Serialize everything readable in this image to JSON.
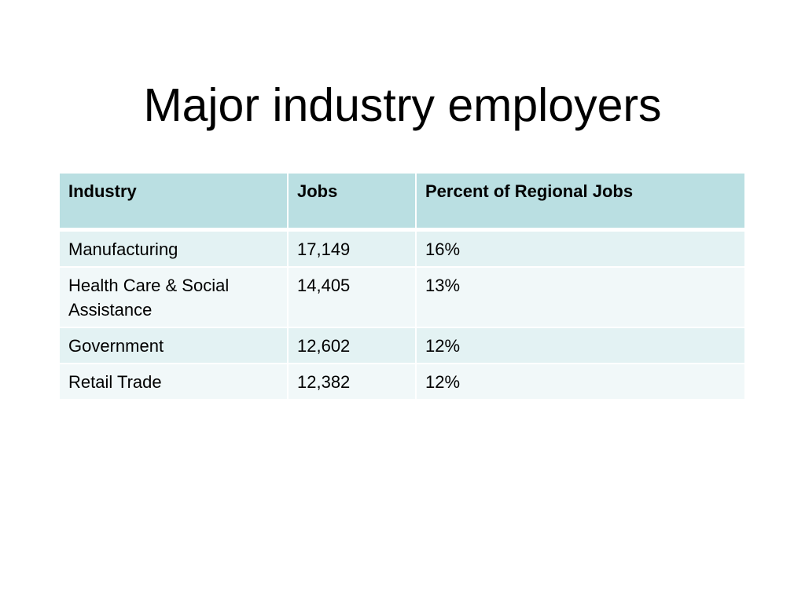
{
  "slide": {
    "title": "Major industry employers"
  },
  "table": {
    "headers": [
      "Industry",
      "Jobs",
      "Percent of Regional Jobs"
    ],
    "rows": [
      [
        "Manufacturing",
        "17,149",
        "16%"
      ],
      [
        "Health Care & Social Assistance",
        "14,405",
        "13%"
      ],
      [
        "Government",
        "12,602",
        "12%"
      ],
      [
        "Retail Trade",
        "12,382",
        "12%"
      ]
    ]
  },
  "colors": {
    "header_background": "#badfe2",
    "row_odd_background": "#e3f2f3",
    "row_even_background": "#f1f8f9",
    "text": "#000000"
  }
}
